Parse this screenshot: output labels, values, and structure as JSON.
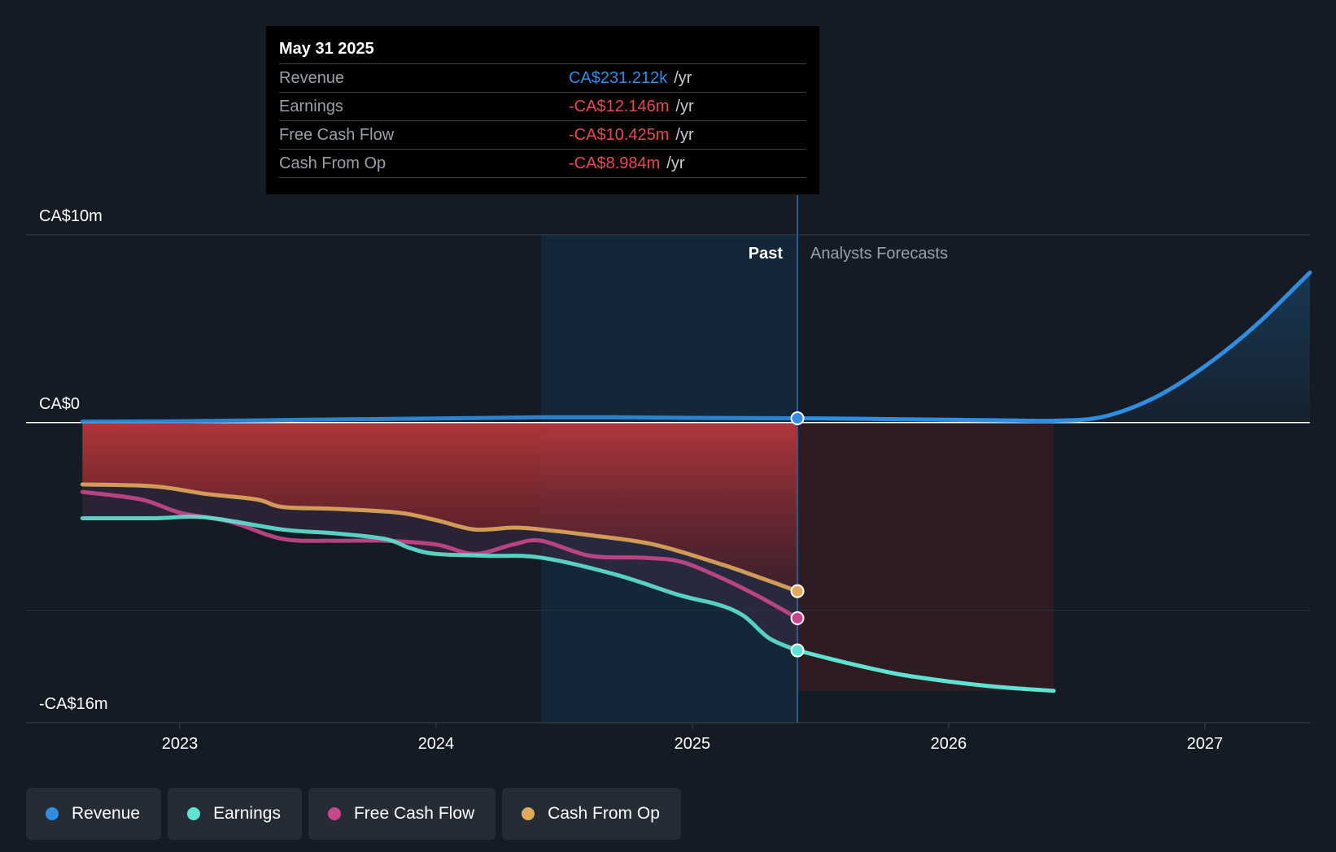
{
  "tooltip": {
    "date": "May 31 2025",
    "rows": [
      {
        "label": "Revenue",
        "value": "CA$231.212k",
        "unit": "/yr",
        "color": "#2f8ee0"
      },
      {
        "label": "Earnings",
        "value": "-CA$12.146m",
        "unit": "/yr",
        "color": "#e84855"
      },
      {
        "label": "Free Cash Flow",
        "value": "-CA$10.425m",
        "unit": "/yr",
        "color": "#e84855"
      },
      {
        "label": "Cash From Op",
        "value": "-CA$8.984m",
        "unit": "/yr",
        "color": "#e84855"
      }
    ]
  },
  "legend": [
    {
      "label": "Revenue",
      "color": "#2f8ee0"
    },
    {
      "label": "Earnings",
      "color": "#5ee3d3"
    },
    {
      "label": "Free Cash Flow",
      "color": "#c8478c"
    },
    {
      "label": "Cash From Op",
      "color": "#e0a95c"
    }
  ],
  "chart_data": {
    "type": "line",
    "title": "",
    "xlabel": "",
    "ylabel": "",
    "y_axis_labels": [
      "CA$10m",
      "CA$0",
      "-CA$16m"
    ],
    "ylim": [
      -16,
      10
    ],
    "xlim": [
      2022.4,
      2027.41
    ],
    "x_ticks": [
      "2023",
      "2024",
      "2025",
      "2026",
      "2027"
    ],
    "x_tick_values": [
      2023,
      2024,
      2025,
      2026,
      2027
    ],
    "zones": {
      "past_label": "Past",
      "forecast_label": "Analysts Forecasts",
      "past_shade_start": 2024.41,
      "divider": 2025.41
    },
    "series": [
      {
        "name": "Revenue",
        "color": "#2f8ee0",
        "unit": "CA$m",
        "points": [
          [
            2022.62,
            0.05
          ],
          [
            2023.0,
            0.07
          ],
          [
            2023.5,
            0.15
          ],
          [
            2024.0,
            0.22
          ],
          [
            2024.41,
            0.28
          ],
          [
            2024.7,
            0.28
          ],
          [
            2025.0,
            0.25
          ],
          [
            2025.41,
            0.23
          ],
          [
            2025.8,
            0.18
          ],
          [
            2026.2,
            0.12
          ],
          [
            2026.41,
            0.1
          ],
          [
            2026.6,
            0.3
          ],
          [
            2026.8,
            1.3
          ],
          [
            2027.0,
            3.0
          ],
          [
            2027.2,
            5.2
          ],
          [
            2027.41,
            8.0
          ]
        ]
      },
      {
        "name": "Earnings",
        "color": "#5ee3d3",
        "unit": "CA$m",
        "points": [
          [
            2022.62,
            -5.1
          ],
          [
            2022.9,
            -5.1
          ],
          [
            2023.1,
            -5.05
          ],
          [
            2023.4,
            -5.7
          ],
          [
            2023.6,
            -5.9
          ],
          [
            2023.8,
            -6.2
          ],
          [
            2023.9,
            -6.7
          ],
          [
            2024.0,
            -7.0
          ],
          [
            2024.2,
            -7.1
          ],
          [
            2024.41,
            -7.2
          ],
          [
            2024.7,
            -8.1
          ],
          [
            2024.95,
            -9.2
          ],
          [
            2025.1,
            -9.7
          ],
          [
            2025.2,
            -10.3
          ],
          [
            2025.3,
            -11.5
          ],
          [
            2025.41,
            -12.146
          ],
          [
            2025.6,
            -12.8
          ],
          [
            2025.8,
            -13.4
          ],
          [
            2026.0,
            -13.8
          ],
          [
            2026.2,
            -14.1
          ],
          [
            2026.41,
            -14.3
          ]
        ]
      },
      {
        "name": "Free Cash Flow",
        "color": "#c8478c",
        "unit": "CA$m",
        "points": [
          [
            2022.62,
            -3.7
          ],
          [
            2022.85,
            -4.1
          ],
          [
            2023.0,
            -4.8
          ],
          [
            2023.2,
            -5.3
          ],
          [
            2023.4,
            -6.2
          ],
          [
            2023.6,
            -6.3
          ],
          [
            2023.8,
            -6.3
          ],
          [
            2024.0,
            -6.5
          ],
          [
            2024.15,
            -7.0
          ],
          [
            2024.3,
            -6.5
          ],
          [
            2024.41,
            -6.3
          ],
          [
            2024.6,
            -7.1
          ],
          [
            2024.8,
            -7.2
          ],
          [
            2024.95,
            -7.4
          ],
          [
            2025.1,
            -8.2
          ],
          [
            2025.25,
            -9.2
          ],
          [
            2025.41,
            -10.425
          ]
        ]
      },
      {
        "name": "Cash From Op",
        "color": "#e0a95c",
        "unit": "CA$m",
        "points": [
          [
            2022.62,
            -3.3
          ],
          [
            2022.9,
            -3.4
          ],
          [
            2023.1,
            -3.8
          ],
          [
            2023.3,
            -4.1
          ],
          [
            2023.4,
            -4.5
          ],
          [
            2023.6,
            -4.6
          ],
          [
            2023.85,
            -4.8
          ],
          [
            2024.0,
            -5.2
          ],
          [
            2024.15,
            -5.7
          ],
          [
            2024.3,
            -5.6
          ],
          [
            2024.41,
            -5.7
          ],
          [
            2024.6,
            -6.0
          ],
          [
            2024.85,
            -6.5
          ],
          [
            2025.1,
            -7.5
          ],
          [
            2025.25,
            -8.2
          ],
          [
            2025.41,
            -8.984
          ]
        ]
      }
    ]
  }
}
